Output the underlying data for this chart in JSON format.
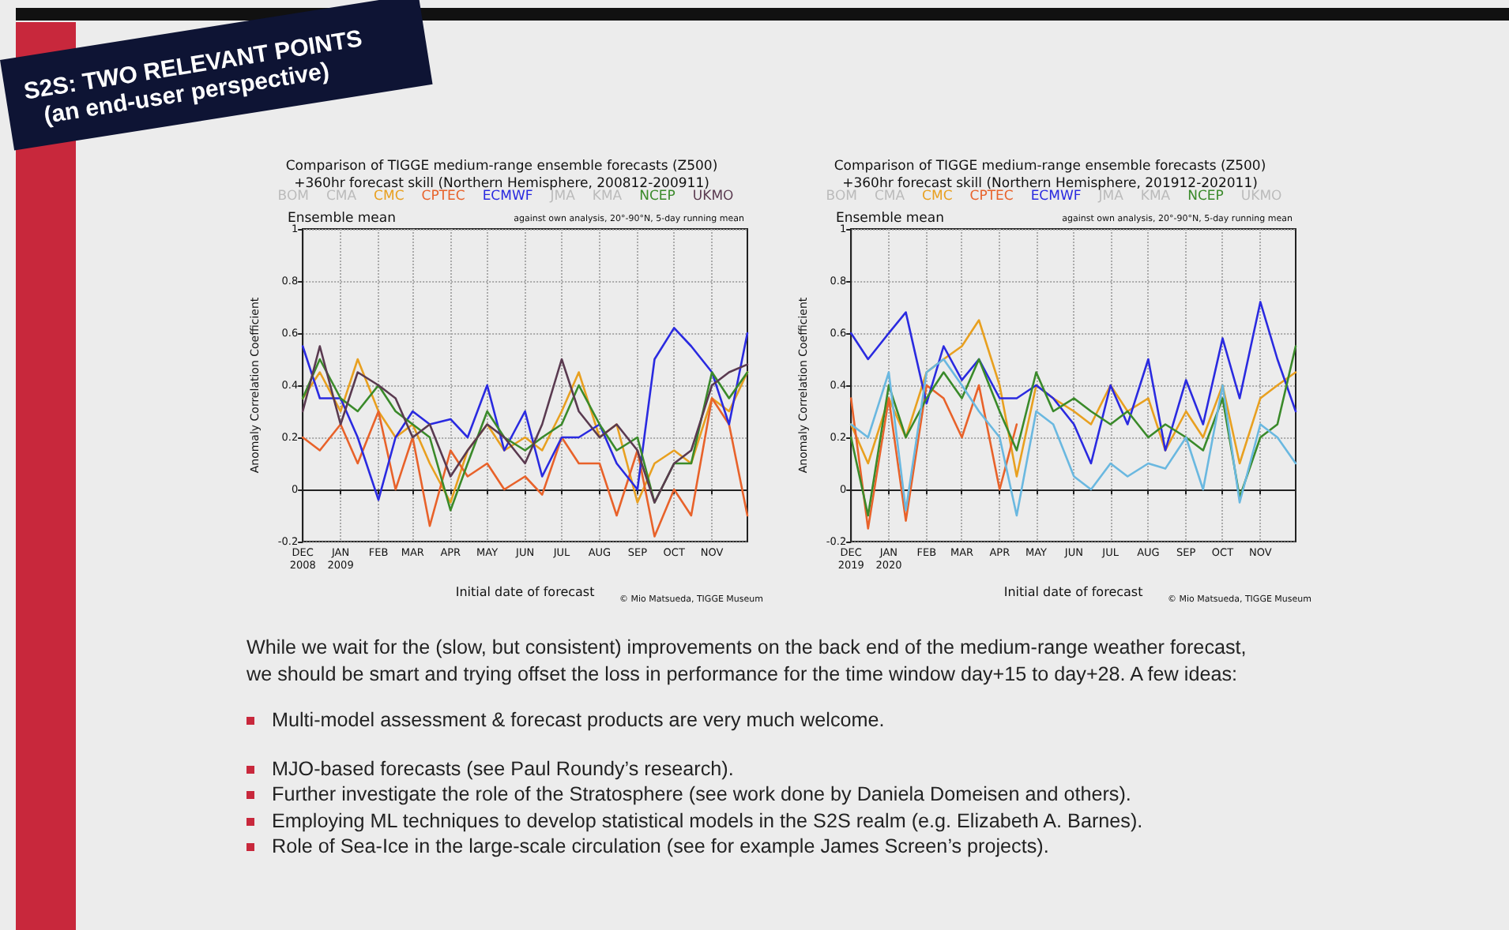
{
  "chart_data": [
    {
      "type": "line",
      "title": "Comparison of TIGGE medium-range ensemble forecasts (Z500)\n+360hr forecast skill (Northern Hemisphere, 200812-200911)",
      "xlabel": "Initial date of forecast",
      "ylabel": "Anomaly Correlation Coefficient",
      "annotations": [
        "Ensemble mean",
        "against own analysis, 20°-90°N, 5-day running mean",
        "© Mio Matsueda, TIGGE Museum"
      ],
      "x": [
        "2008-12-01",
        "2008-12-15",
        "2009-01-01",
        "2009-01-15",
        "2009-02-01",
        "2009-02-15",
        "2009-03-01",
        "2009-03-15",
        "2009-04-01",
        "2009-04-15",
        "2009-05-01",
        "2009-05-15",
        "2009-06-01",
        "2009-06-15",
        "2009-07-01",
        "2009-07-15",
        "2009-08-01",
        "2009-08-15",
        "2009-09-01",
        "2009-09-15",
        "2009-10-01",
        "2009-10-15",
        "2009-11-01",
        "2009-11-15",
        "2009-11-30"
      ],
      "series": [
        {
          "name": "BOM",
          "color": "#bbbbbb",
          "values": [
            null,
            null,
            null,
            null,
            null,
            null,
            null,
            null,
            null,
            null,
            null,
            null,
            null,
            null,
            null,
            null,
            null,
            null,
            null,
            null,
            null,
            null,
            null,
            null,
            null
          ]
        },
        {
          "name": "CMA",
          "color": "#bbbbbb",
          "values": [
            null,
            null,
            null,
            null,
            null,
            null,
            null,
            null,
            null,
            null,
            null,
            null,
            null,
            null,
            null,
            null,
            null,
            null,
            null,
            null,
            null,
            null,
            null,
            null,
            null
          ]
        },
        {
          "name": "CMC",
          "color": "#e8a020",
          "values": [
            0.35,
            0.45,
            0.3,
            0.5,
            0.3,
            0.2,
            0.25,
            0.1,
            -0.05,
            0.15,
            0.25,
            0.15,
            0.2,
            0.15,
            0.3,
            0.45,
            0.2,
            0.25,
            -0.05,
            0.1,
            0.15,
            0.1,
            0.35,
            0.3,
            0.45
          ]
        },
        {
          "name": "CPTEC",
          "color": "#e8622a",
          "values": [
            0.2,
            0.15,
            0.25,
            0.1,
            0.3,
            0.0,
            0.2,
            -0.14,
            0.15,
            0.05,
            0.1,
            0.0,
            0.05,
            -0.02,
            0.2,
            0.1,
            0.1,
            -0.1,
            0.15,
            -0.18,
            0.0,
            -0.1,
            0.35,
            0.25,
            -0.1
          ]
        },
        {
          "name": "ECMWF",
          "color": "#2a2ae0",
          "values": [
            0.55,
            0.35,
            0.35,
            0.2,
            -0.04,
            0.2,
            0.3,
            0.25,
            0.27,
            0.2,
            0.4,
            0.15,
            0.3,
            0.05,
            0.2,
            0.2,
            0.25,
            0.1,
            0.0,
            0.5,
            0.62,
            0.55,
            0.45,
            0.25,
            0.6
          ]
        },
        {
          "name": "JMA",
          "color": "#bbbbbb",
          "values": [
            null,
            null,
            null,
            null,
            null,
            null,
            null,
            null,
            null,
            null,
            null,
            null,
            null,
            null,
            null,
            null,
            null,
            null,
            null,
            null,
            null,
            null,
            null,
            null,
            null
          ]
        },
        {
          "name": "KMA",
          "color": "#bbbbbb",
          "values": [
            null,
            null,
            null,
            null,
            null,
            null,
            null,
            null,
            null,
            null,
            null,
            null,
            null,
            null,
            null,
            null,
            null,
            null,
            null,
            null,
            null,
            null,
            null,
            null,
            null
          ]
        },
        {
          "name": "NCEP",
          "color": "#3a8a2a",
          "values": [
            0.35,
            0.5,
            0.35,
            0.3,
            0.4,
            0.3,
            0.25,
            0.2,
            -0.08,
            0.1,
            0.3,
            0.2,
            0.15,
            0.2,
            0.25,
            0.4,
            0.25,
            0.15,
            0.2,
            -0.05,
            0.1,
            0.1,
            0.45,
            0.35,
            0.45
          ]
        },
        {
          "name": "UKMO",
          "color": "#5a3a50",
          "values": [
            0.3,
            0.55,
            0.25,
            0.45,
            0.4,
            0.35,
            0.2,
            0.25,
            0.05,
            0.15,
            0.25,
            0.2,
            0.1,
            0.25,
            0.5,
            0.3,
            0.2,
            0.25,
            0.15,
            -0.05,
            0.1,
            0.15,
            0.4,
            0.45,
            0.48
          ]
        }
      ],
      "xlim": [
        "2008-12-01",
        "2009-11-30"
      ],
      "xticks": [
        {
          "value": "2008-12-01",
          "label": "DEC\n2008"
        },
        {
          "value": "2009-01-01",
          "label": "JAN\n2009"
        },
        {
          "value": "2009-02-01",
          "label": "FEB"
        },
        {
          "value": "2009-03-01",
          "label": "MAR"
        },
        {
          "value": "2009-04-01",
          "label": "APR"
        },
        {
          "value": "2009-05-01",
          "label": "MAY"
        },
        {
          "value": "2009-06-01",
          "label": "JUN"
        },
        {
          "value": "2009-07-01",
          "label": "JUL"
        },
        {
          "value": "2009-08-01",
          "label": "AUG"
        },
        {
          "value": "2009-09-01",
          "label": "SEP"
        },
        {
          "value": "2009-10-01",
          "label": "OCT"
        },
        {
          "value": "2009-11-01",
          "label": "NOV"
        }
      ],
      "ylim": [
        -0.2,
        1
      ],
      "yticks": [
        -0.2,
        0,
        0.2,
        0.4,
        0.6,
        0.8,
        1
      ],
      "grid": true,
      "legend": "top",
      "marker": "none",
      "line_style": "solid"
    },
    {
      "type": "line",
      "title": "Comparison of TIGGE medium-range ensemble forecasts (Z500)\n+360hr forecast skill (Northern Hemisphere, 201912-202011)",
      "xlabel": "Initial date of forecast",
      "ylabel": "Anomaly Correlation Coefficient",
      "annotations": [
        "Ensemble mean",
        "against own analysis, 20°-90°N, 5-day running mean",
        "© Mio Matsueda, TIGGE Museum"
      ],
      "x": [
        "2019-12-01",
        "2019-12-15",
        "2020-01-01",
        "2020-01-15",
        "2020-02-01",
        "2020-02-15",
        "2020-03-01",
        "2020-03-15",
        "2020-04-01",
        "2020-04-15",
        "2020-05-01",
        "2020-05-15",
        "2020-06-01",
        "2020-06-15",
        "2020-07-01",
        "2020-07-15",
        "2020-08-01",
        "2020-08-15",
        "2020-09-01",
        "2020-09-15",
        "2020-10-01",
        "2020-10-15",
        "2020-11-01",
        "2020-11-15",
        "2020-11-30"
      ],
      "series": [
        {
          "name": "BOM",
          "color": "#bbbbbb",
          "values": [
            null,
            null,
            null,
            null,
            null,
            null,
            null,
            null,
            null,
            null,
            null,
            null,
            null,
            null,
            null,
            null,
            null,
            null,
            null,
            null,
            null,
            null,
            null,
            null,
            null
          ]
        },
        {
          "name": "CMA",
          "color": "#bbbbbb",
          "values": [
            null,
            null,
            null,
            null,
            null,
            null,
            null,
            null,
            null,
            null,
            null,
            null,
            null,
            null,
            null,
            null,
            null,
            null,
            null,
            null,
            null,
            null,
            null,
            null,
            null
          ]
        },
        {
          "name": "CMC",
          "color": "#e8a020",
          "values": [
            0.25,
            0.1,
            0.35,
            0.2,
            0.45,
            0.5,
            0.55,
            0.65,
            0.4,
            0.05,
            0.4,
            0.35,
            0.3,
            0.25,
            0.4,
            0.3,
            0.35,
            0.15,
            0.3,
            0.2,
            0.4,
            0.1,
            0.35,
            0.4,
            0.45
          ]
        },
        {
          "name": "CPTEC",
          "color": "#e8622a",
          "values": [
            0.35,
            -0.15,
            0.35,
            -0.12,
            0.4,
            0.35,
            0.2,
            0.4,
            0.0,
            0.25,
            null,
            null,
            null,
            null,
            null,
            null,
            null,
            null,
            null,
            null,
            null,
            null,
            null,
            null,
            null
          ]
        },
        {
          "name": "ECMWF",
          "color": "#2a2ae0",
          "values": [
            0.6,
            0.5,
            0.6,
            0.68,
            0.33,
            0.55,
            0.42,
            0.5,
            0.35,
            0.35,
            0.4,
            0.35,
            0.25,
            0.1,
            0.4,
            0.25,
            0.5,
            0.15,
            0.42,
            0.25,
            0.58,
            0.35,
            0.72,
            0.5,
            0.3
          ]
        },
        {
          "name": "JMA",
          "color": "#bbbbbb",
          "values": [
            null,
            null,
            null,
            null,
            null,
            null,
            null,
            null,
            null,
            null,
            null,
            null,
            null,
            null,
            null,
            null,
            null,
            null,
            null,
            null,
            null,
            null,
            null,
            null,
            null
          ]
        },
        {
          "name": "KMA",
          "color": "#bbbbbb",
          "values": [
            null,
            null,
            null,
            null,
            null,
            null,
            null,
            null,
            null,
            null,
            null,
            null,
            null,
            null,
            null,
            null,
            null,
            null,
            null,
            null,
            null,
            null,
            null,
            null,
            null
          ]
        },
        {
          "name": "NCEP",
          "color": "#3a8a2a",
          "values": [
            0.2,
            -0.1,
            0.4,
            0.2,
            0.35,
            0.45,
            0.35,
            0.5,
            0.3,
            0.15,
            0.45,
            0.3,
            0.35,
            0.3,
            0.25,
            0.3,
            0.2,
            0.25,
            0.2,
            0.15,
            0.35,
            -0.03,
            0.2,
            0.25,
            0.55
          ]
        },
        {
          "name": "UKMO",
          "color": "#bbbbbb",
          "values": [
            null,
            null,
            null,
            null,
            null,
            null,
            null,
            null,
            null,
            null,
            null,
            null,
            null,
            null,
            null,
            null,
            null,
            null,
            null,
            null,
            null,
            null,
            null,
            null,
            null
          ]
        },
        {
          "color": "#6ab8e0",
          "values": [
            0.25,
            0.2,
            0.45,
            -0.08,
            0.45,
            0.5,
            0.4,
            0.3,
            0.2,
            -0.1,
            0.3,
            0.25,
            0.05,
            0.0,
            0.1,
            0.05,
            0.1,
            0.08,
            0.2,
            0.0,
            0.4,
            -0.05,
            0.25,
            0.2,
            0.1
          ]
        }
      ],
      "xlim": [
        "2019-12-01",
        "2020-11-30"
      ],
      "xticks": [
        {
          "value": "2019-12-01",
          "label": "DEC\n2019"
        },
        {
          "value": "2020-01-01",
          "label": "JAN\n2020"
        },
        {
          "value": "2020-02-01",
          "label": "FEB"
        },
        {
          "value": "2020-03-01",
          "label": "MAR"
        },
        {
          "value": "2020-04-01",
          "label": "APR"
        },
        {
          "value": "2020-05-01",
          "label": "MAY"
        },
        {
          "value": "2020-06-01",
          "label": "JUN"
        },
        {
          "value": "2020-07-01",
          "label": "JUL"
        },
        {
          "value": "2020-08-01",
          "label": "AUG"
        },
        {
          "value": "2020-09-01",
          "label": "SEP"
        },
        {
          "value": "2020-10-01",
          "label": "OCT"
        },
        {
          "value": "2020-11-01",
          "label": "NOV"
        }
      ],
      "ylim": [
        -0.2,
        1
      ],
      "yticks": [
        -0.2,
        0,
        0.2,
        0.4,
        0.6,
        0.8,
        1
      ],
      "grid": true,
      "legend": "top",
      "marker": "none",
      "line_style": "solid"
    },
    {
      "type": "other",
      "title": "S2S: TWO RELEVANT POINTS",
      "subtitle": "(an end-user perspective)",
      "annotations": [
        "While we wait for the (slow, but consistent) improvements on the back end of the medium-range weather forecast, we should be smart and trying offset the loss in performance for the time window day+15 to day+28. A few ideas:",
        "Multi-model assessment & forecast products are very much welcome.",
        "MJO-based forecasts (see Paul Roundy’s research).",
        "Further investigate the role of the Stratosphere (see work done by Daniela Domeisen and others).",
        "Employing ML techniques to develop statistical models in the S2S realm (e.g. Elizabeth A. Barnes).",
        "Role of Sea-Ice in the large-scale circulation (see for example James Screen’s projects)."
      ]
    }
  ]
}
